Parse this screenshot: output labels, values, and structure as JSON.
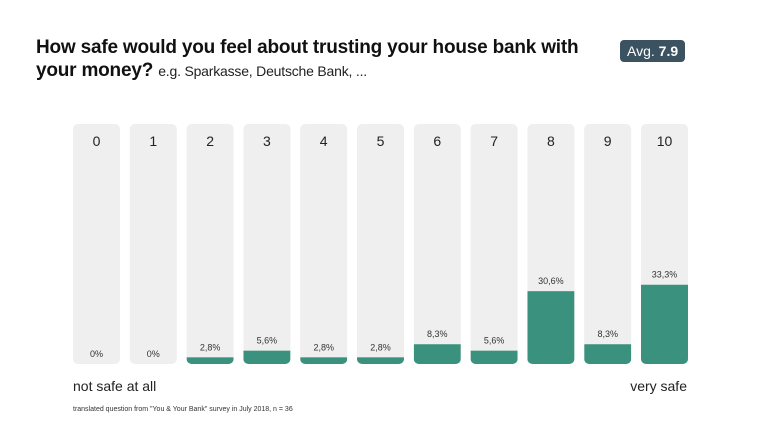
{
  "header": {
    "title": "How safe would you feel about trusting your house bank with your money?",
    "subtitle": "e.g. Sparkasse, Deutsche Bank, ...",
    "avg_label": "Avg.",
    "avg_value": "7.9"
  },
  "chart_data": {
    "type": "bar",
    "title": "How safe would you feel about trusting your house bank with your money?",
    "categories": [
      "0",
      "1",
      "2",
      "3",
      "4",
      "5",
      "6",
      "7",
      "8",
      "9",
      "10"
    ],
    "values": [
      0,
      0,
      2.8,
      5.6,
      2.8,
      2.8,
      8.3,
      5.6,
      30.6,
      8.3,
      33.3
    ],
    "value_labels": [
      "0%",
      "0%",
      "2,8%",
      "5,6%",
      "2,8%",
      "2,8%",
      "8,3%",
      "5,6%",
      "30,6%",
      "8,3%",
      "33,3%"
    ],
    "ylim": [
      0,
      100
    ],
    "xlabel_left": "not safe at all",
    "xlabel_right": "very safe",
    "colors": {
      "bar": "#3a917d",
      "track": "#efefef"
    }
  },
  "footer": "translated question from \"You & Your Bank\" survey in July 2018, n = 36"
}
